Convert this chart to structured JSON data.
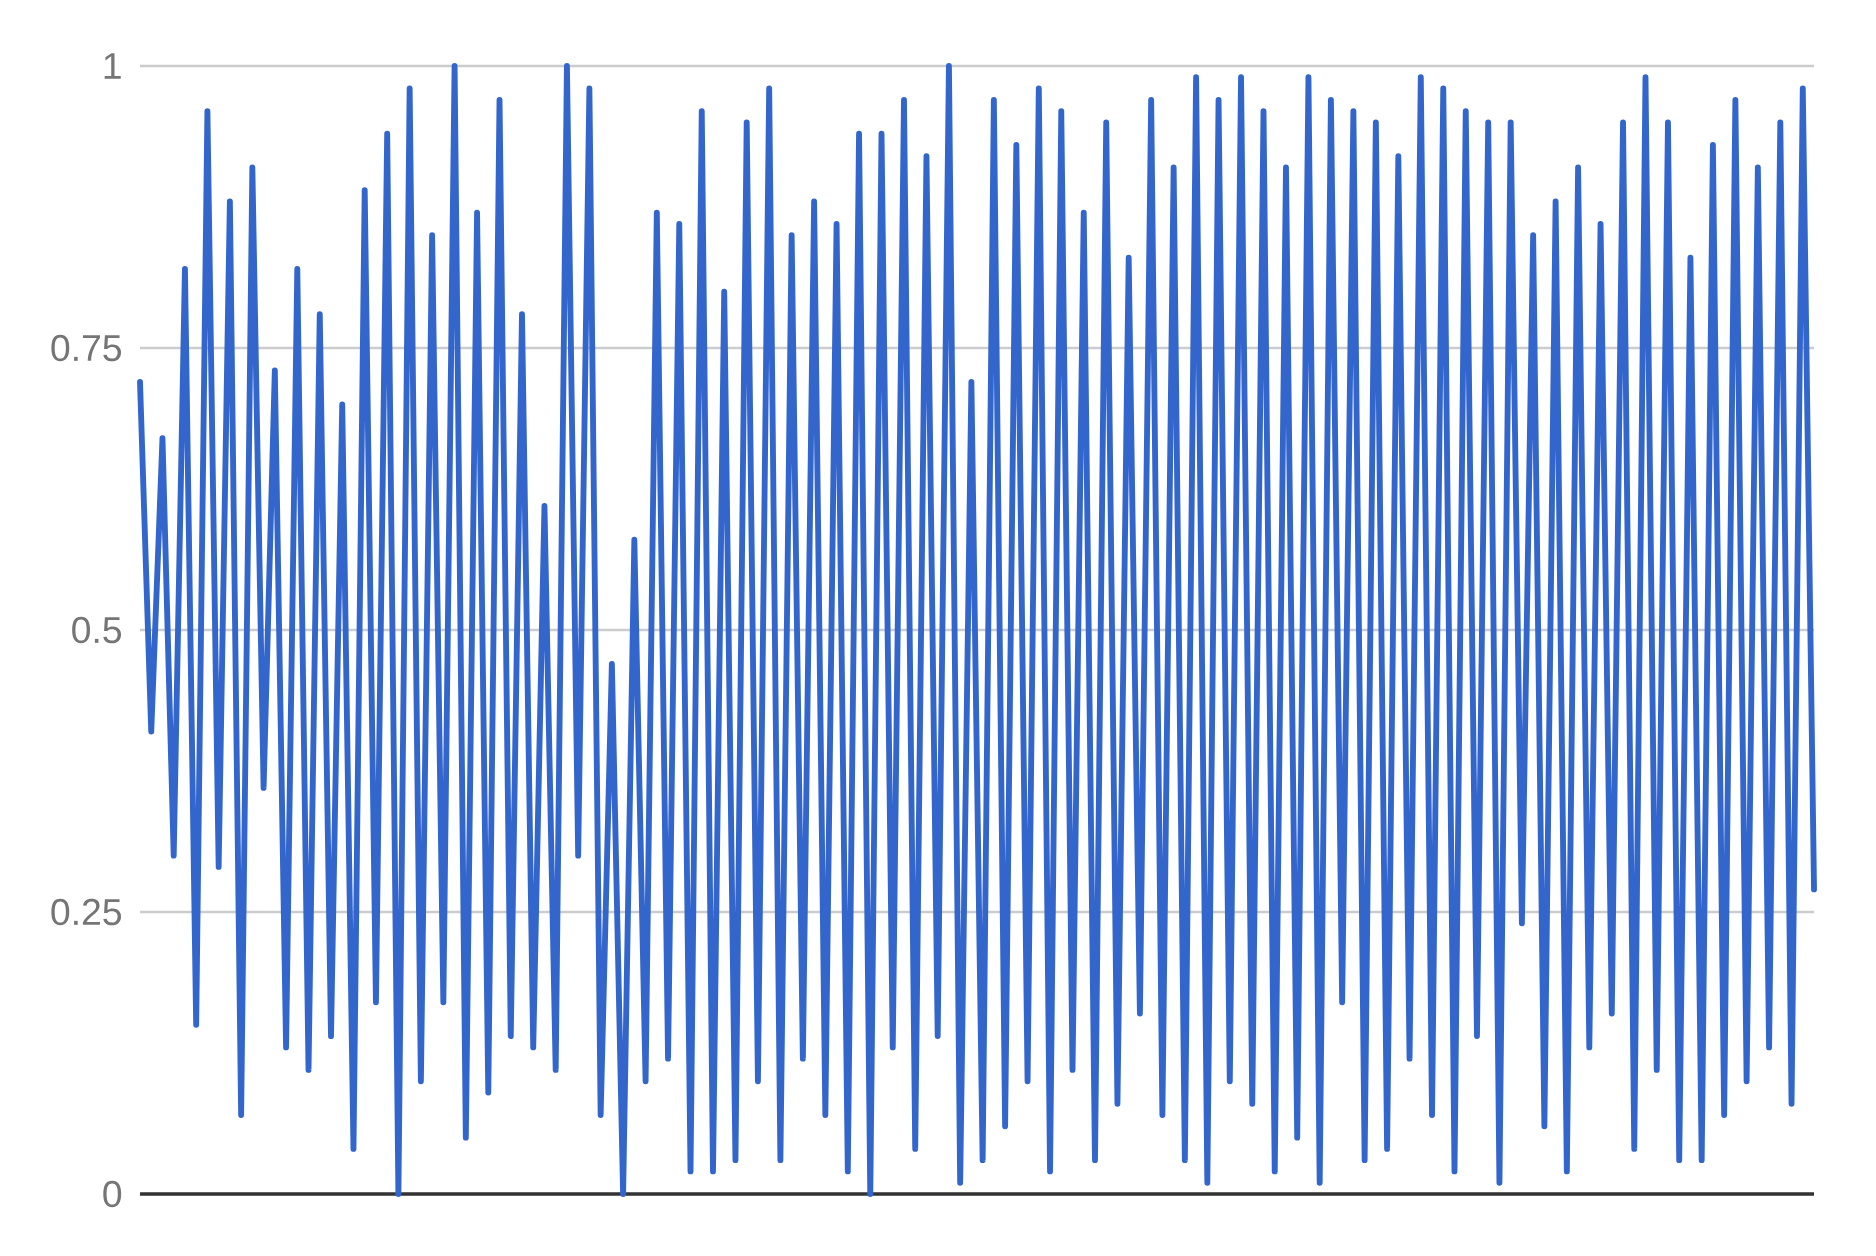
{
  "chart_data": {
    "type": "line",
    "categories": [
      null,
      null,
      null,
      null,
      null,
      null,
      null,
      null,
      null,
      null,
      null,
      null,
      null,
      null,
      null,
      null,
      null,
      null,
      null,
      null,
      null,
      null,
      null,
      null,
      null,
      null,
      null,
      null,
      null,
      null,
      null,
      null,
      null,
      null,
      null,
      null,
      null,
      null,
      null,
      null,
      null,
      null,
      null,
      null,
      null,
      null,
      null,
      null,
      null,
      null,
      null,
      null,
      null,
      null,
      null,
      null,
      null,
      null,
      null,
      null,
      null,
      null,
      null,
      null,
      null,
      null,
      null,
      null,
      null,
      null,
      null,
      null,
      null,
      null,
      null,
      null,
      null,
      null,
      null,
      null,
      null,
      null,
      null,
      null,
      null,
      null,
      null,
      null,
      null,
      null,
      null,
      null,
      null,
      null,
      null,
      null,
      null,
      null,
      null,
      null,
      null,
      null,
      null,
      null,
      null,
      null,
      null,
      null,
      null,
      null,
      null,
      null,
      null,
      null,
      null,
      null,
      null,
      null,
      null,
      null,
      null,
      null,
      null,
      null,
      null,
      null,
      null,
      null,
      null,
      null,
      null,
      null,
      null,
      null,
      null,
      null,
      null,
      null,
      null,
      null,
      null,
      null,
      null,
      null,
      null,
      null,
      null,
      null,
      null,
      null
    ],
    "values": [
      0.72,
      0.41,
      0.67,
      0.3,
      0.82,
      0.15,
      0.96,
      0.29,
      0.88,
      0.07,
      0.91,
      0.36,
      0.73,
      0.13,
      0.82,
      0.11,
      0.78,
      0.14,
      0.7,
      0.04,
      0.89,
      0.17,
      0.94,
      0.0,
      0.98,
      0.1,
      0.85,
      0.17,
      1.0,
      0.05,
      0.87,
      0.09,
      0.97,
      0.14,
      0.78,
      0.13,
      0.61,
      0.11,
      1.0,
      0.3,
      0.98,
      0.07,
      0.47,
      0.0,
      0.58,
      0.1,
      0.87,
      0.12,
      0.86,
      0.02,
      0.96,
      0.02,
      0.8,
      0.03,
      0.95,
      0.1,
      0.98,
      0.03,
      0.85,
      0.12,
      0.88,
      0.07,
      0.86,
      0.02,
      0.94,
      0.0,
      0.94,
      0.13,
      0.97,
      0.04,
      0.92,
      0.14,
      1.0,
      0.01,
      0.72,
      0.03,
      0.97,
      0.06,
      0.93,
      0.1,
      0.98,
      0.02,
      0.96,
      0.11,
      0.87,
      0.03,
      0.95,
      0.08,
      0.83,
      0.16,
      0.97,
      0.07,
      0.91,
      0.03,
      0.99,
      0.01,
      0.97,
      0.1,
      0.99,
      0.08,
      0.96,
      0.02,
      0.91,
      0.05,
      0.99,
      0.01,
      0.97,
      0.17,
      0.96,
      0.03,
      0.95,
      0.04,
      0.92,
      0.12,
      0.99,
      0.07,
      0.98,
      0.02,
      0.96,
      0.14,
      0.95,
      0.01,
      0.95,
      0.24,
      0.85,
      0.06,
      0.88,
      0.02,
      0.91,
      0.13,
      0.86,
      0.16,
      0.95,
      0.04,
      0.99,
      0.11,
      0.95,
      0.03,
      0.83,
      0.03,
      0.93,
      0.07,
      0.97,
      0.1,
      0.91,
      0.13,
      0.95,
      0.08,
      0.98,
      0.27
    ],
    "color": "#3366cc",
    "ylim": [
      0,
      1
    ],
    "yticks": [
      0,
      0.25,
      0.5,
      0.75,
      1
    ],
    "grid": "y",
    "line_style": "solid",
    "tick_labels": "y"
  }
}
